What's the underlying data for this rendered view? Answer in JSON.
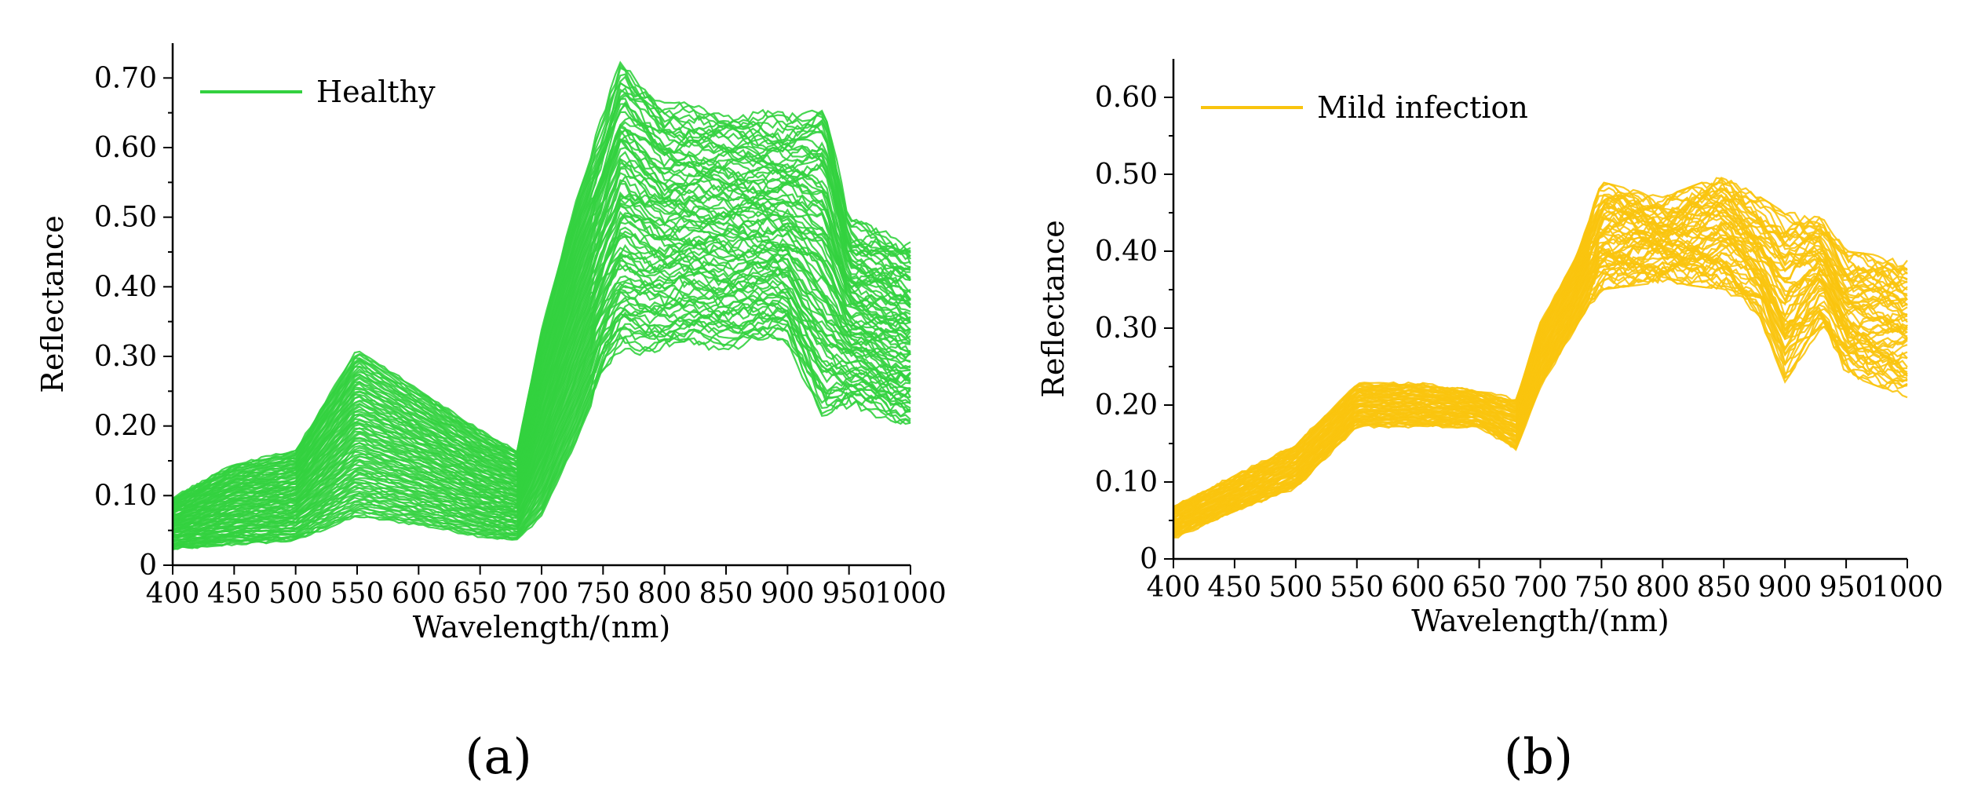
{
  "chart_data": [
    {
      "type": "line",
      "panel_label": "(a)",
      "title": "",
      "xlabel": "Wavelength/(nm)",
      "ylabel": "Reflectance",
      "xlim": [
        400,
        1000
      ],
      "ylim": [
        0,
        0.75
      ],
      "xticks": [
        "400",
        "450",
        "500",
        "550",
        "600",
        "650",
        "700",
        "750",
        "800",
        "850",
        "900",
        "950",
        "1000"
      ],
      "yticks": [
        "0",
        "0.10",
        "0.20",
        "0.30",
        "0.40",
        "0.50",
        "0.60",
        "0.70"
      ],
      "grid": false,
      "legend": {
        "position": "top-left",
        "entries": [
          "Healthy"
        ]
      },
      "color": "#33d13f",
      "band": {
        "x": [
          400,
          450,
          500,
          550,
          600,
          650,
          680,
          700,
          730,
          750,
          765,
          800,
          850,
          900,
          930,
          950,
          1000
        ],
        "lower": [
          0.02,
          0.025,
          0.03,
          0.06,
          0.05,
          0.035,
          0.03,
          0.06,
          0.17,
          0.26,
          0.3,
          0.3,
          0.31,
          0.31,
          0.2,
          0.22,
          0.2
        ],
        "upper": [
          0.1,
          0.15,
          0.17,
          0.32,
          0.26,
          0.2,
          0.17,
          0.35,
          0.55,
          0.65,
          0.74,
          0.67,
          0.66,
          0.65,
          0.68,
          0.5,
          0.47
        ]
      }
    },
    {
      "type": "line",
      "panel_label": "(b)",
      "title": "",
      "xlabel": "Wavelength/(nm)",
      "ylabel": "Reflectance",
      "xlim": [
        400,
        1000
      ],
      "ylim": [
        0,
        0.65
      ],
      "xticks": [
        "400",
        "450",
        "500",
        "550",
        "600",
        "650",
        "700",
        "750",
        "800",
        "850",
        "900",
        "950",
        "1000"
      ],
      "yticks": [
        "0",
        "0.10",
        "0.20",
        "0.30",
        "0.40",
        "0.50",
        "0.60"
      ],
      "grid": false,
      "legend": {
        "position": "top-left",
        "entries": [
          "Mild infection"
        ]
      },
      "color": "#f9c40e",
      "band": {
        "x": [
          400,
          450,
          500,
          550,
          600,
          650,
          680,
          700,
          730,
          750,
          800,
          850,
          880,
          900,
          930,
          950,
          1000
        ],
        "lower": [
          0.025,
          0.06,
          0.09,
          0.17,
          0.17,
          0.17,
          0.14,
          0.22,
          0.3,
          0.35,
          0.36,
          0.35,
          0.31,
          0.23,
          0.3,
          0.24,
          0.21
        ],
        "upper": [
          0.07,
          0.11,
          0.15,
          0.23,
          0.23,
          0.22,
          0.21,
          0.31,
          0.4,
          0.49,
          0.47,
          0.5,
          0.47,
          0.45,
          0.45,
          0.4,
          0.39
        ]
      }
    }
  ]
}
